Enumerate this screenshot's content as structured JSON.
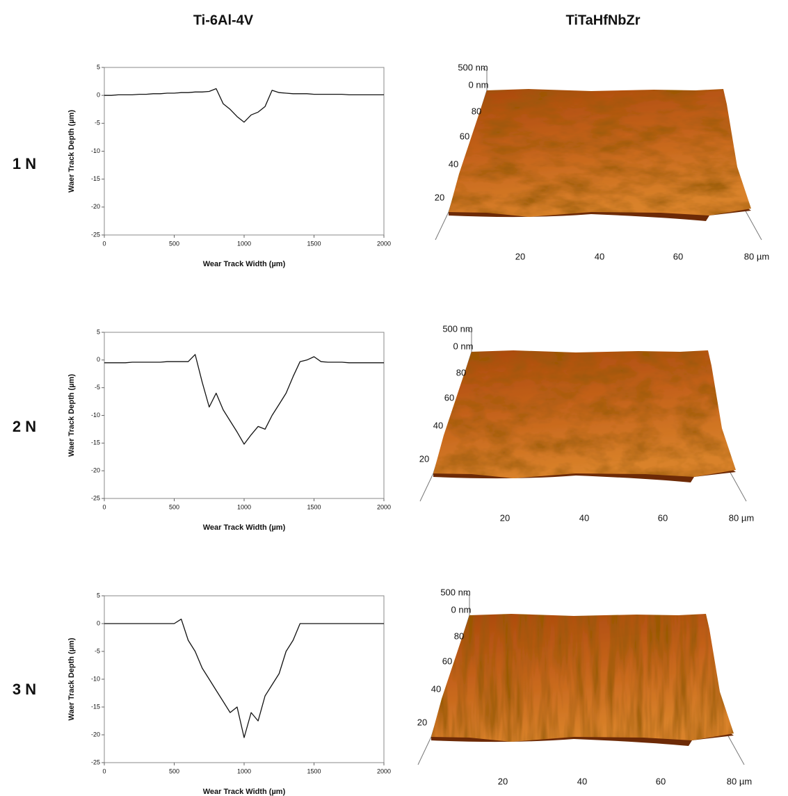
{
  "header": {
    "left": "Ti-6Al-4V",
    "right": "TiTaHfNbZr"
  },
  "rows": [
    "1 N",
    "2 N",
    "3 N"
  ],
  "chart_data": [
    {
      "type": "line",
      "ylabel": "Waer Track Depth (µm)",
      "xlabel": "Wear Track Width (µm)",
      "color": "#111111",
      "x": [
        0,
        50,
        100,
        150,
        200,
        250,
        300,
        350,
        400,
        450,
        500,
        550,
        600,
        650,
        700,
        750,
        800,
        850,
        900,
        950,
        1000,
        1050,
        1100,
        1150,
        1200,
        1250,
        1300,
        1350,
        1400,
        1450,
        1500,
        1550,
        1600,
        1650,
        1700,
        1750,
        1800,
        1850,
        1900,
        1950,
        2000
      ],
      "values": [
        0,
        0,
        0.1,
        0.1,
        0.1,
        0.2,
        0.2,
        0.3,
        0.3,
        0.4,
        0.4,
        0.5,
        0.5,
        0.6,
        0.6,
        0.7,
        1.2,
        -1.5,
        -2.5,
        -3.8,
        -4.8,
        -3.5,
        -3.0,
        -2.0,
        0.9,
        0.5,
        0.4,
        0.3,
        0.3,
        0.3,
        0.2,
        0.2,
        0.2,
        0.2,
        0.2,
        0.1,
        0.1,
        0.1,
        0.1,
        0.1,
        0.1
      ],
      "xlim": [
        0,
        2000
      ],
      "xticks": [
        0,
        500,
        1000,
        1500,
        2000
      ],
      "ylim": [
        -25,
        5
      ],
      "yticks": [
        -25,
        -20,
        -15,
        -10,
        -5,
        0,
        5
      ]
    },
    {
      "type": "line",
      "ylabel": "Waer Track Depth (µm)",
      "xlabel": "Wear Track Width (µm)",
      "color": "#111111",
      "x": [
        0,
        50,
        100,
        150,
        200,
        250,
        300,
        350,
        400,
        450,
        500,
        550,
        600,
        650,
        700,
        750,
        800,
        850,
        900,
        950,
        1000,
        1050,
        1100,
        1150,
        1200,
        1250,
        1300,
        1350,
        1400,
        1450,
        1500,
        1550,
        1600,
        1650,
        1700,
        1750,
        1800,
        1850,
        1900,
        1950,
        2000
      ],
      "values": [
        -0.5,
        -0.5,
        -0.5,
        -0.5,
        -0.4,
        -0.4,
        -0.4,
        -0.4,
        -0.4,
        -0.3,
        -0.3,
        -0.3,
        -0.3,
        1,
        -4,
        -8.5,
        -6,
        -9,
        -11,
        -13,
        -15.2,
        -13.5,
        -12,
        -12.5,
        -10,
        -8,
        -6,
        -3,
        -0.3,
        0,
        0.6,
        -0.3,
        -0.4,
        -0.4,
        -0.4,
        -0.5,
        -0.5,
        -0.5,
        -0.5,
        -0.5,
        -0.5
      ],
      "xlim": [
        0,
        2000
      ],
      "xticks": [
        0,
        500,
        1000,
        1500,
        2000
      ],
      "ylim": [
        -25,
        5
      ],
      "yticks": [
        -25,
        -20,
        -15,
        -10,
        -5,
        0,
        5
      ]
    },
    {
      "type": "line",
      "ylabel": "Waer Track Depth (µm)",
      "xlabel": "Wear Track Width (µm)",
      "color": "#111111",
      "x": [
        0,
        50,
        100,
        150,
        200,
        250,
        300,
        350,
        400,
        450,
        500,
        550,
        600,
        650,
        700,
        750,
        800,
        850,
        900,
        950,
        1000,
        1050,
        1100,
        1150,
        1200,
        1250,
        1300,
        1350,
        1400,
        1450,
        1500,
        1550,
        1600,
        1650,
        1700,
        1750,
        1800,
        1850,
        1900,
        1950,
        2000
      ],
      "values": [
        0,
        0,
        0,
        0,
        0,
        0,
        0,
        0,
        0,
        0,
        0,
        0.8,
        -3,
        -5,
        -8,
        -10,
        -12,
        -14,
        -16,
        -15,
        -20.5,
        -16,
        -17.5,
        -13,
        -11,
        -9,
        -5,
        -3,
        0,
        0,
        0,
        0,
        0,
        0,
        0,
        0,
        0,
        0,
        0,
        0,
        0
      ],
      "xlim": [
        0,
        2000
      ],
      "xticks": [
        0,
        500,
        1000,
        1500,
        2000
      ],
      "ylim": [
        -25,
        5
      ],
      "yticks": [
        -25,
        -20,
        -15,
        -10,
        -5,
        0,
        5
      ]
    }
  ],
  "afm_images": [
    {
      "z_labels": [
        "500 nm",
        "0 nm"
      ],
      "y_labels": [
        "80",
        "60",
        "40",
        "20"
      ],
      "x_labels": [
        "20",
        "40",
        "60",
        "80 µm"
      ]
    },
    {
      "z_labels": [
        "500 nm",
        "0 nm"
      ],
      "y_labels": [
        "80",
        "60",
        "40",
        "20"
      ],
      "x_labels": [
        "20",
        "40",
        "60",
        "80 µm"
      ]
    },
    {
      "z_labels": [
        "500 nm",
        "0 nm"
      ],
      "y_labels": [
        "80",
        "60",
        "40",
        "20"
      ],
      "x_labels": [
        "20",
        "40",
        "60",
        "80 µm"
      ]
    }
  ]
}
